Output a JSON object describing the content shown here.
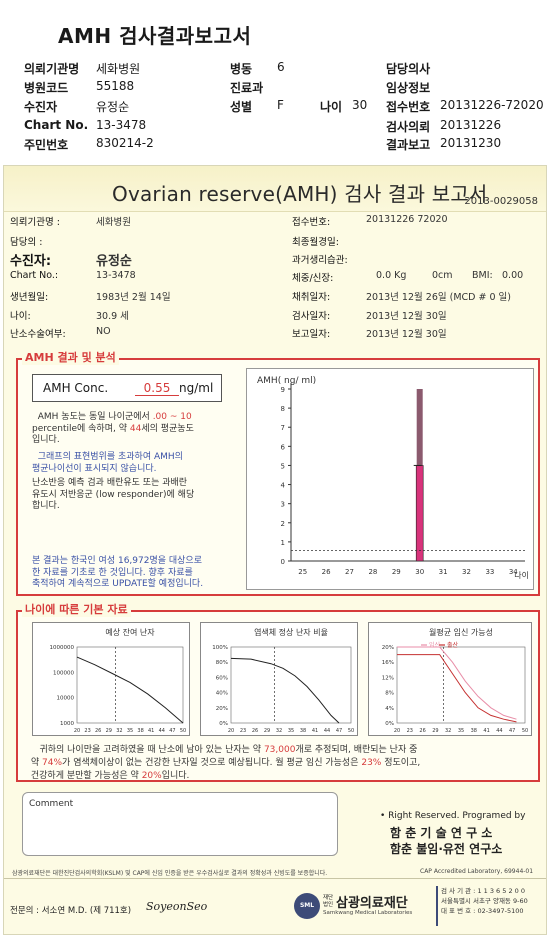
{
  "header": {
    "title": "AMH 검사결과보고서",
    "fields": {
      "hospital_label": "의뢰기관명",
      "hospital": "세화병원",
      "ward_label": "병동",
      "ward": "6",
      "doctor_label": "담당의사",
      "code_label": "병원코드",
      "code": "55188",
      "dept_label": "진료과",
      "clinical_label": "임상정보",
      "patient_label": "수진자",
      "patient": "유정순",
      "sex_label": "성별",
      "sex": "F",
      "age_label": "나이",
      "age": "30",
      "receipt_label": "접수번호",
      "receipt": "20131226-72020",
      "chart_label": "Chart No.",
      "chart": "13-3478",
      "request_label": "검사의뢰",
      "request": "20131226",
      "rrn_label": "주민번호",
      "rrn": "830214-2",
      "report_label": "결과보고",
      "report": "20131230"
    }
  },
  "report": {
    "title": "Ovarian reserve(AMH) 검사 결과 보고서",
    "doc_number": "2013-0029058",
    "left": {
      "hospital_label": "의뢰기관명 :",
      "hospital": "세화병원",
      "doctor_label": "담당의 :",
      "patient_label": "수진자:",
      "patient": "유정순",
      "chart_label": "Chart No.:",
      "chart": "13-3478",
      "dob_label": "생년월일:",
      "dob": "1983년 2월 14일",
      "age_label": "나이:",
      "age": "30.9 세",
      "surgery_label": "난소수술여부:",
      "surgery": "NO"
    },
    "right": {
      "receipt_label": "접수번호:",
      "receipt": "20131226 72020",
      "lmp_label": "최종월경일:",
      "history_label": "과거생리습관:",
      "body_label": "체중/신장:",
      "weight": "0.0 Kg",
      "height": "0cm",
      "bmi_label": "BMI:",
      "bmi": "0.00",
      "collect_label": "채취일자:",
      "collect": "2013년 12월 26일 (MCD # 0 일)",
      "test_label": "검사일자:",
      "test": "2013년 12월 30일",
      "report_label": "보고일자:",
      "report": "2013년 12월 30일"
    },
    "analysis": {
      "tag": "AMH 결과 및 분석",
      "conc_label": "AMH Conc.",
      "conc_value": "0.55",
      "conc_unit": "ng/ml",
      "p1_a": "AMH 농도는 동일 나이군에서",
      "p1_range": ".00 ~ 10",
      "p1_b": "percentile에 속하며, 약",
      "p1_age": "44",
      "p1_c": "세의 평균농도",
      "p1_d": "입니다.",
      "p2_a": "그래프의 표현범위를 초과하여 AMH의",
      "p2_b": "평균나이선이 표시되지 않습니다.",
      "p3_a": "난소반응 예측 검과 배란유도 또는 과배란",
      "p3_b": "유도시 저반응군 (low responder)에 해당",
      "p3_c": "합니다.",
      "p4_a": "본 결과는 한국인 여성 16,972명을 대상으로",
      "p4_b": "한 자료를 기초로 한 것입니다. 향후 자료를",
      "p4_c": "축적하여 계속적으로 UPDATE할 예정입니다."
    },
    "basic": {
      "tag": "나이에 따른 기본 자료",
      "summary_a": "귀하의 나이만을 고려하였을 때 난소에 남아 있는 난자는 약",
      "summary_eggs": "73,000",
      "summary_b": "개로 추정되며, 배란되는 난자 중",
      "summary_c": "약",
      "summary_normal": "74%",
      "summary_d": "가 염색체이상이 없는 건강한 난자일 것으로 예상됩니다. 월 평균 임신 가능성은",
      "summary_preg": "23%",
      "summary_e": "정도이고,",
      "summary_f": "건강하게 분만할 가능성은 약",
      "summary_birth": "20%",
      "summary_g": "입니다."
    },
    "comment_label": "Comment",
    "rights": "• Right Reserved. Programed by",
    "institute1": "함 춘 기 술 연 구 소",
    "institute2": "함춘 불임·유전 연구소",
    "footnote": "삼광의료재단은 대한진단검사의학회(KSLM) 및 CAP에 신임 인증을 받은 우수검사실로 결과의 정확성과 신빙도를 보증합니다.",
    "cap": "CAP Accredited Laboratory, 69944-01",
    "specialist": "전문의 : 서소연 M.D. (제 711호)",
    "signature": "SoyeonSeo",
    "lab_small": "재단법인",
    "lab_name": "삼광의료재단",
    "lab_en": "Samkwang Medical Laboratories",
    "lab_logo": "SML",
    "lab_info1": "검 사 기 관 : 1 1 3 6 5 2 0 0",
    "lab_info2": "서울특별시 서초구 양재동 9-60",
    "lab_info3": "대 표 번 호 : 02-3497-5100"
  },
  "chart_data": [
    {
      "type": "bar",
      "title": "",
      "ylabel": "AMH( ng/ ml)",
      "xlabel": "나이",
      "x": [
        25,
        26,
        27,
        28,
        29,
        30,
        31,
        32,
        33,
        34
      ],
      "ylim": [
        0,
        9
      ],
      "yticks": [
        0,
        1,
        2,
        3,
        4,
        5,
        6,
        7,
        8,
        9
      ],
      "patient_age": 30,
      "patient_value": 0.55,
      "avg_age_range": [
        5,
        9
      ],
      "error_top": 5,
      "reference_line": 0.55,
      "colors": {
        "bar": "#d8337b",
        "range": "#8b5a6e"
      }
    },
    {
      "type": "line",
      "title": "예상 잔여 난자",
      "x_ticks": [
        "20",
        "23",
        "26",
        "29",
        "32",
        "35",
        "38",
        "41",
        "44",
        "47",
        "50"
      ],
      "y_ticks": [
        "1000000",
        "100000",
        "10000",
        "1000"
      ],
      "y_scale": "log",
      "ylim": [
        1000,
        1000000
      ],
      "x": [
        20,
        25,
        30,
        35,
        40,
        45,
        50
      ],
      "y": [
        400000,
        200000,
        90000,
        40000,
        14000,
        4000,
        1000
      ],
      "marker_age": 30.9
    },
    {
      "type": "line",
      "title": "염색체 정상 난자 비율",
      "x_ticks": [
        "20",
        "23",
        "26",
        "29",
        "32",
        "35",
        "38",
        "41",
        "44",
        "47",
        "50"
      ],
      "y_ticks": [
        "100%",
        "80%",
        "60%",
        "40%",
        "20%",
        "0%"
      ],
      "ylim": [
        0,
        100
      ],
      "x": [
        20,
        25,
        30,
        33,
        36,
        39,
        42,
        45,
        47
      ],
      "y": [
        85,
        84,
        78,
        72,
        62,
        48,
        30,
        10,
        0
      ],
      "marker_age": 30.9
    },
    {
      "type": "line",
      "title": "월평균 임신 가능성",
      "legend": [
        "임신",
        "출산"
      ],
      "x_ticks": [
        "20",
        "23",
        "26",
        "29",
        "32",
        "35",
        "38",
        "41",
        "44",
        "47",
        "50"
      ],
      "y_ticks": [
        "20%",
        "16%",
        "12%",
        "8%",
        "4%",
        "0%"
      ],
      "ylim": [
        0,
        20
      ],
      "series": [
        {
          "name": "임신",
          "x": [
            20,
            30,
            33,
            36,
            39,
            42,
            45,
            48
          ],
          "y": [
            20,
            20,
            16,
            11,
            7,
            4,
            2,
            1
          ]
        },
        {
          "name": "출산",
          "x": [
            20,
            30,
            33,
            36,
            39,
            42,
            45,
            48
          ],
          "y": [
            18,
            18,
            13,
            8,
            4,
            2,
            1,
            0.3
          ]
        }
      ],
      "marker_age": 30.9,
      "colors": {
        "임신": "#e88ea8",
        "출산": "#c53030"
      }
    }
  ]
}
